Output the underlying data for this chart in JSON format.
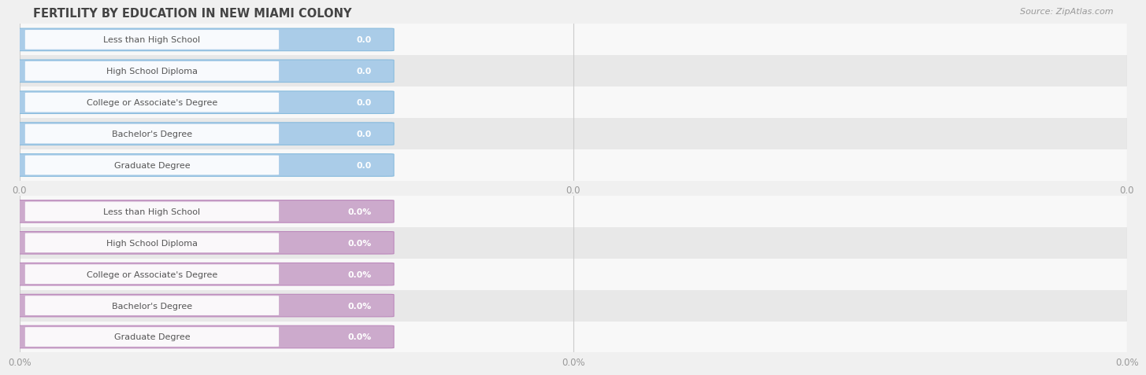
{
  "title": "FERTILITY BY EDUCATION IN NEW MIAMI COLONY",
  "source": "Source: ZipAtlas.com",
  "categories": [
    "Less than High School",
    "High School Diploma",
    "College or Associate's Degree",
    "Bachelor's Degree",
    "Graduate Degree"
  ],
  "top_values": [
    0.0,
    0.0,
    0.0,
    0.0,
    0.0
  ],
  "bottom_values": [
    0.0,
    0.0,
    0.0,
    0.0,
    0.0
  ],
  "top_bar_color": "#aacce8",
  "top_bar_border_color": "#88bbdd",
  "bottom_bar_color": "#ccaacc",
  "bottom_bar_border_color": "#bb88bb",
  "grid_color": "#cccccc",
  "bg_color": "#f0f0f0",
  "row_bg_light": "#f8f8f8",
  "row_bg_dark": "#e8e8e8",
  "title_color": "#444444",
  "source_color": "#999999",
  "label_text_color": "#555555",
  "tick_color": "#999999",
  "top_xticklabels": [
    "0.0",
    "0.0",
    "0.0"
  ],
  "bottom_xticklabels": [
    "0.0%",
    "0.0%",
    "0.0%"
  ]
}
